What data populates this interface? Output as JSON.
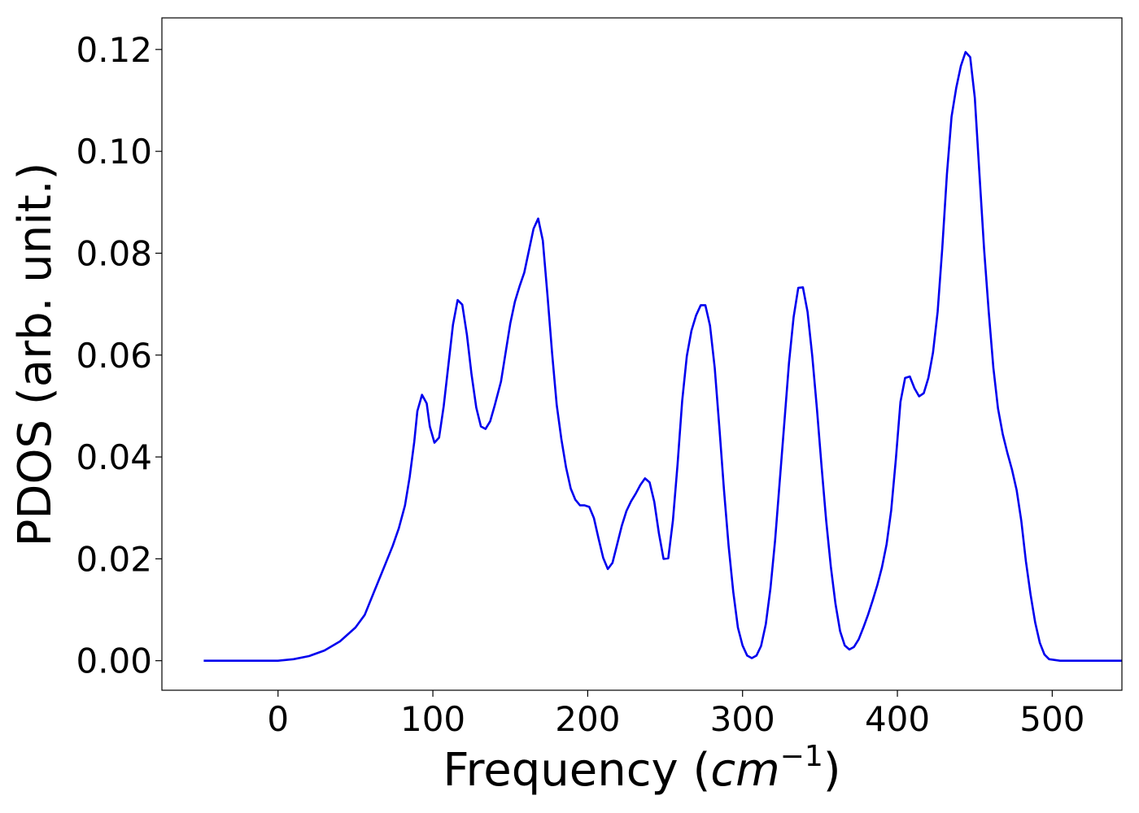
{
  "chart_data": {
    "type": "line",
    "title": "",
    "xlabel_main": "Frequency (",
    "xlabel_unit": "cm",
    "xlabel_exp": "−1",
    "xlabel_close": ")",
    "ylabel": "PDOS (arb. unit.)",
    "xlim": [
      -75,
      545
    ],
    "ylim": [
      -0.0058,
      0.1262
    ],
    "x_ticks": [
      0,
      100,
      200,
      300,
      400,
      500
    ],
    "x_tick_labels": [
      "0",
      "100",
      "200",
      "300",
      "400",
      "500"
    ],
    "y_ticks": [
      0.0,
      0.02,
      0.04,
      0.06,
      0.08,
      0.1,
      0.12
    ],
    "y_tick_labels": [
      "0.00",
      "0.02",
      "0.04",
      "0.06",
      "0.08",
      "0.10",
      "0.12"
    ],
    "grid": false,
    "series": [
      {
        "color": "#0000ee",
        "points": [
          [
            -48,
            0.0
          ],
          [
            -20,
            0.0
          ],
          [
            0,
            0.0
          ],
          [
            10,
            0.0003
          ],
          [
            20,
            0.0009
          ],
          [
            30,
            0.002
          ],
          [
            40,
            0.0038
          ],
          [
            50,
            0.0065
          ],
          [
            56,
            0.009
          ],
          [
            62,
            0.0135
          ],
          [
            68,
            0.018
          ],
          [
            74,
            0.0225
          ],
          [
            78,
            0.026
          ],
          [
            82,
            0.0305
          ],
          [
            85,
            0.036
          ],
          [
            88,
            0.043
          ],
          [
            90,
            0.049
          ],
          [
            93,
            0.0522
          ],
          [
            96,
            0.0505
          ],
          [
            98,
            0.046
          ],
          [
            101,
            0.0428
          ],
          [
            104,
            0.0438
          ],
          [
            107,
            0.05
          ],
          [
            110,
            0.058
          ],
          [
            113,
            0.066
          ],
          [
            116,
            0.0708
          ],
          [
            119,
            0.0699
          ],
          [
            122,
            0.064
          ],
          [
            125,
            0.0562
          ],
          [
            128,
            0.0497
          ],
          [
            131,
            0.046
          ],
          [
            134,
            0.0455
          ],
          [
            137,
            0.047
          ],
          [
            140,
            0.0502
          ],
          [
            144,
            0.0548
          ],
          [
            147,
            0.0605
          ],
          [
            150,
            0.0662
          ],
          [
            153,
            0.0705
          ],
          [
            156,
            0.0735
          ],
          [
            159,
            0.0762
          ],
          [
            162,
            0.0805
          ],
          [
            165,
            0.0848
          ],
          [
            168,
            0.0868
          ],
          [
            171,
            0.0825
          ],
          [
            174,
            0.0718
          ],
          [
            177,
            0.0604
          ],
          [
            180,
            0.0502
          ],
          [
            183,
            0.0435
          ],
          [
            186,
            0.038
          ],
          [
            189,
            0.0338
          ],
          [
            192,
            0.0316
          ],
          [
            195,
            0.0305
          ],
          [
            198,
            0.0305
          ],
          [
            201,
            0.0302
          ],
          [
            204,
            0.028
          ],
          [
            207,
            0.024
          ],
          [
            210,
            0.0202
          ],
          [
            213,
            0.018
          ],
          [
            216,
            0.0192
          ],
          [
            219,
            0.0228
          ],
          [
            222,
            0.0265
          ],
          [
            225,
            0.0294
          ],
          [
            228,
            0.0313
          ],
          [
            231,
            0.0328
          ],
          [
            234,
            0.0345
          ],
          [
            237,
            0.0358
          ],
          [
            240,
            0.035
          ],
          [
            243,
            0.0312
          ],
          [
            246,
            0.025
          ],
          [
            249,
            0.02
          ],
          [
            252,
            0.0201
          ],
          [
            255,
            0.0275
          ],
          [
            258,
            0.0385
          ],
          [
            261,
            0.051
          ],
          [
            264,
            0.0598
          ],
          [
            267,
            0.0648
          ],
          [
            270,
            0.0678
          ],
          [
            273,
            0.0698
          ],
          [
            276,
            0.0698
          ],
          [
            279,
            0.0658
          ],
          [
            282,
            0.0575
          ],
          [
            285,
            0.0458
          ],
          [
            288,
            0.0335
          ],
          [
            291,
            0.0225
          ],
          [
            294,
            0.0135
          ],
          [
            297,
            0.0065
          ],
          [
            300,
            0.003
          ],
          [
            303,
            0.001
          ],
          [
            306,
            0.0005
          ],
          [
            309,
            0.001
          ],
          [
            312,
            0.0029
          ],
          [
            315,
            0.0072
          ],
          [
            318,
            0.0142
          ],
          [
            321,
            0.0236
          ],
          [
            324,
            0.0352
          ],
          [
            327,
            0.0468
          ],
          [
            330,
            0.0585
          ],
          [
            333,
            0.0675
          ],
          [
            336,
            0.0732
          ],
          [
            339,
            0.0733
          ],
          [
            342,
            0.0685
          ],
          [
            345,
            0.0598
          ],
          [
            348,
            0.0495
          ],
          [
            351,
            0.0382
          ],
          [
            354,
            0.0275
          ],
          [
            357,
            0.0185
          ],
          [
            360,
            0.0112
          ],
          [
            363,
            0.0058
          ],
          [
            366,
            0.003
          ],
          [
            369,
            0.0022
          ],
          [
            372,
            0.0027
          ],
          [
            375,
            0.0042
          ],
          [
            378,
            0.0065
          ],
          [
            381,
            0.009
          ],
          [
            384,
            0.0118
          ],
          [
            387,
            0.0148
          ],
          [
            390,
            0.0183
          ],
          [
            393,
            0.0228
          ],
          [
            396,
            0.0295
          ],
          [
            399,
            0.0395
          ],
          [
            402,
            0.0508
          ],
          [
            405,
            0.0555
          ],
          [
            408,
            0.0558
          ],
          [
            411,
            0.0535
          ],
          [
            414,
            0.0519
          ],
          [
            417,
            0.0525
          ],
          [
            420,
            0.0555
          ],
          [
            423,
            0.0605
          ],
          [
            426,
            0.0685
          ],
          [
            429,
            0.081
          ],
          [
            432,
            0.0955
          ],
          [
            435,
            0.1068
          ],
          [
            438,
            0.1125
          ],
          [
            441,
            0.1168
          ],
          [
            444,
            0.1195
          ],
          [
            447,
            0.1185
          ],
          [
            450,
            0.1105
          ],
          [
            453,
            0.0955
          ],
          [
            456,
            0.0808
          ],
          [
            459,
            0.0685
          ],
          [
            462,
            0.0575
          ],
          [
            465,
            0.0495
          ],
          [
            468,
            0.0445
          ],
          [
            471,
            0.0408
          ],
          [
            474,
            0.0375
          ],
          [
            477,
            0.0335
          ],
          [
            480,
            0.0275
          ],
          [
            483,
            0.0195
          ],
          [
            486,
            0.013
          ],
          [
            489,
            0.0075
          ],
          [
            492,
            0.0035
          ],
          [
            495,
            0.0012
          ],
          [
            498,
            0.0003
          ],
          [
            505,
            0.0
          ],
          [
            520,
            0.0
          ],
          [
            545,
            0.0
          ]
        ]
      }
    ]
  }
}
